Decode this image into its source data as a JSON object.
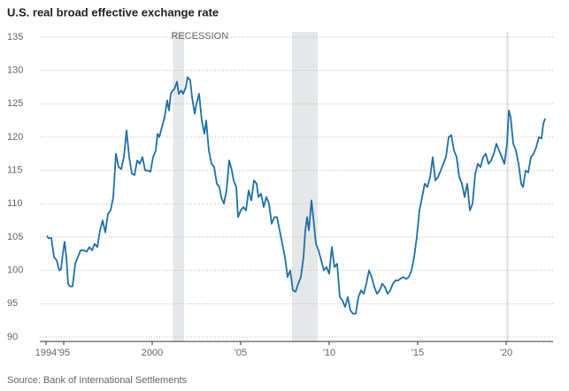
{
  "chart_data": {
    "type": "line",
    "title": "U.S. real broad effective exchange rate",
    "source": "Source: Bank of International Settlements",
    "recession_label": "RECESSION",
    "recessions": [
      {
        "start": 2001.17,
        "end": 2001.8
      },
      {
        "start": 2007.9,
        "end": 2009.35
      },
      {
        "start": 2020.0,
        "end": 2020.15
      }
    ],
    "color": "#1f6fa6",
    "grid": true,
    "xlim": [
      1993.4,
      2022.65
    ],
    "ylim": [
      90,
      135
    ],
    "xticks": [
      1994,
      {
        "value": 1995,
        "label": "'95"
      },
      2000,
      {
        "value": 2005,
        "label": "'05"
      },
      {
        "value": 2010,
        "label": "'10"
      },
      {
        "value": 2015,
        "label": "'15"
      },
      {
        "value": 2020,
        "label": "'20"
      }
    ],
    "yticks": [
      90,
      95,
      100,
      105,
      110,
      115,
      120,
      125,
      130,
      135
    ],
    "x": [
      1994.05,
      1994.15,
      1994.3,
      1994.45,
      1994.6,
      1994.75,
      1994.85,
      1994.95,
      1995.05,
      1995.15,
      1995.25,
      1995.35,
      1995.5,
      1995.65,
      1995.8,
      1995.95,
      1996.15,
      1996.3,
      1996.45,
      1996.6,
      1996.75,
      1996.9,
      1997.05,
      1997.2,
      1997.35,
      1997.5,
      1997.65,
      1997.8,
      1997.95,
      1998.1,
      1998.25,
      1998.4,
      1998.55,
      1998.7,
      1998.85,
      1999,
      1999.15,
      1999.3,
      1999.45,
      1999.6,
      1999.75,
      1999.9,
      2000.05,
      2000.2,
      2000.3,
      2000.4,
      2000.55,
      2000.7,
      2000.85,
      2000.95,
      2001.05,
      2001.15,
      2001.25,
      2001.4,
      2001.5,
      2001.65,
      2001.75,
      2001.9,
      2002,
      2002.15,
      2002.25,
      2002.4,
      2002.5,
      2002.65,
      2002.8,
      2002.95,
      2003.05,
      2003.2,
      2003.35,
      2003.5,
      2003.65,
      2003.8,
      2003.9,
      2004.05,
      2004.2,
      2004.35,
      2004.5,
      2004.6,
      2004.75,
      2004.85,
      2005,
      2005.15,
      2005.3,
      2005.45,
      2005.6,
      2005.75,
      2005.9,
      2006,
      2006.15,
      2006.3,
      2006.45,
      2006.6,
      2006.75,
      2006.9,
      2007.05,
      2007.2,
      2007.35,
      2007.5,
      2007.65,
      2007.8,
      2007.95,
      2008.1,
      2008.25,
      2008.4,
      2008.55,
      2008.65,
      2008.75,
      2008.85,
      2009,
      2009.1,
      2009.25,
      2009.4,
      2009.55,
      2009.7,
      2009.85,
      2010,
      2010.15,
      2010.3,
      2010.45,
      2010.6,
      2010.75,
      2010.9,
      2011.05,
      2011.2,
      2011.35,
      2011.5,
      2011.65,
      2011.8,
      2011.95,
      2012.1,
      2012.25,
      2012.4,
      2012.55,
      2012.7,
      2012.85,
      2013,
      2013.15,
      2013.3,
      2013.45,
      2013.6,
      2013.75,
      2013.9,
      2014.05,
      2014.2,
      2014.35,
      2014.5,
      2014.65,
      2014.8,
      2014.95,
      2015.1,
      2015.25,
      2015.4,
      2015.55,
      2015.7,
      2015.85,
      2016,
      2016.15,
      2016.3,
      2016.45,
      2016.6,
      2016.75,
      2016.9,
      2017.05,
      2017.2,
      2017.35,
      2017.5,
      2017.65,
      2017.8,
      2017.95,
      2018.1,
      2018.25,
      2018.4,
      2018.55,
      2018.7,
      2018.85,
      2019,
      2019.15,
      2019.3,
      2019.45,
      2019.6,
      2019.75,
      2019.9,
      2020.05,
      2020.15,
      2020.25,
      2020.4,
      2020.55,
      2020.7,
      2020.85,
      2020.95,
      2021.1,
      2021.25,
      2021.4,
      2021.55,
      2021.7,
      2021.85,
      2022,
      2022.1,
      2022.2
    ],
    "values": [
      105.2,
      104.8,
      104.9,
      102,
      101.5,
      100,
      100.2,
      102.5,
      104.3,
      102,
      98,
      97.6,
      97.6,
      101,
      102,
      103,
      103,
      102.8,
      103.5,
      103,
      104,
      103.5,
      106,
      107.5,
      105.7,
      108.5,
      109,
      111,
      117.5,
      115.5,
      115.2,
      117,
      121,
      117,
      114.5,
      114.3,
      116.5,
      116,
      117,
      115,
      115,
      114.8,
      117,
      118,
      120.5,
      120,
      121.5,
      123,
      125.5,
      124,
      126.5,
      127,
      127.2,
      128.3,
      126.5,
      127,
      126.5,
      127.5,
      129,
      128.5,
      126,
      123.5,
      125,
      126.5,
      122.5,
      120.5,
      122.5,
      118,
      116,
      115.5,
      113,
      112.5,
      111,
      110,
      112,
      116.5,
      115,
      113.5,
      112.5,
      108,
      109,
      109.5,
      109,
      112,
      110.5,
      113.5,
      113,
      111,
      111.5,
      109.5,
      111,
      110,
      107,
      108,
      108,
      106,
      104,
      102,
      99,
      100,
      97,
      96.8,
      98,
      99,
      102,
      106,
      108,
      106,
      110.5,
      108,
      104,
      103,
      101.5,
      100,
      100.5,
      99.5,
      103.5,
      100.5,
      101,
      96,
      95.5,
      94.5,
      96,
      94,
      93.5,
      93.5,
      96,
      97,
      96.5,
      98,
      100,
      99,
      97.5,
      96.5,
      97,
      98,
      97.5,
      96.5,
      97,
      98,
      98.5,
      98.5,
      98.8,
      99,
      98.7,
      99,
      100,
      102,
      105,
      109,
      111,
      113,
      112.5,
      114,
      117,
      113.5,
      114,
      115,
      116,
      117,
      120,
      120.3,
      118,
      117,
      114,
      113,
      111,
      113,
      109,
      110,
      114.5,
      116,
      115.5,
      117,
      117.5,
      116,
      116.5,
      117.5,
      119,
      118,
      117,
      116,
      119,
      124,
      123,
      119,
      118,
      116,
      113,
      112.5,
      115,
      114.7,
      117,
      117.5,
      118.5,
      120,
      119.8,
      122,
      122.8
    ]
  }
}
